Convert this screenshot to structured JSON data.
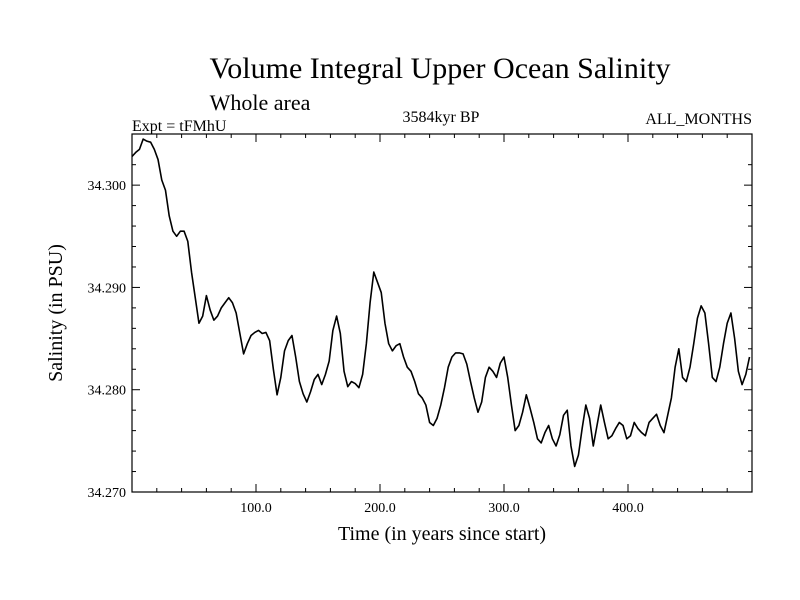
{
  "chart_data": {
    "type": "line",
    "title": "Volume Integral Upper Ocean Salinity",
    "subtitle": "Whole area",
    "experiment_label": "Expt = tFMhU",
    "period_label": "3584kyr BP",
    "months_label": "ALL_MONTHS",
    "xlabel": "Time (in years since start)",
    "ylabel": "Salinity (in PSU)",
    "xlim": [
      0,
      500
    ],
    "ylim": [
      34.27,
      34.305
    ],
    "x_ticks": [
      100,
      200,
      300,
      400
    ],
    "x_tick_labels": [
      "100.0",
      "200.0",
      "300.0",
      "400.0"
    ],
    "y_ticks": [
      34.27,
      34.28,
      34.29,
      34.3
    ],
    "y_tick_labels": [
      "34.270",
      "34.280",
      "34.290",
      "34.300"
    ],
    "series": [
      {
        "name": "Salinity",
        "color": "#000000",
        "x": [
          0,
          3,
          6,
          9,
          12,
          15,
          18,
          21,
          24,
          27,
          30,
          33,
          36,
          39,
          42,
          45,
          48,
          51,
          54,
          57,
          60,
          63,
          66,
          69,
          72,
          75,
          78,
          81,
          84,
          87,
          90,
          93,
          96,
          99,
          102,
          105,
          108,
          111,
          114,
          117,
          120,
          123,
          126,
          129,
          132,
          135,
          138,
          141,
          144,
          147,
          150,
          153,
          156,
          159,
          162,
          165,
          168,
          171,
          174,
          177,
          180,
          183,
          186,
          189,
          192,
          195,
          198,
          201,
          204,
          207,
          210,
          213,
          216,
          219,
          222,
          225,
          228,
          231,
          234,
          237,
          240,
          243,
          246,
          249,
          252,
          255,
          258,
          261,
          264,
          267,
          270,
          273,
          276,
          279,
          282,
          285,
          288,
          291,
          294,
          297,
          300,
          303,
          306,
          309,
          312,
          315,
          318,
          321,
          324,
          327,
          330,
          333,
          336,
          339,
          342,
          345,
          348,
          351,
          354,
          357,
          360,
          363,
          366,
          369,
          372,
          375,
          378,
          381,
          384,
          387,
          390,
          393,
          396,
          399,
          402,
          405,
          408,
          411,
          414,
          417,
          420,
          423,
          426,
          429,
          432,
          435,
          438,
          441,
          444,
          447,
          450,
          453,
          456,
          459,
          462,
          465,
          468,
          471,
          474,
          477,
          480,
          483,
          486,
          489,
          492,
          495,
          498
        ],
        "values": [
          34.3028,
          34.3032,
          34.3035,
          34.3045,
          34.3043,
          34.3042,
          34.3035,
          34.3025,
          34.3005,
          34.2995,
          34.297,
          34.2955,
          34.295,
          34.2955,
          34.2955,
          34.2945,
          34.2915,
          34.289,
          34.2865,
          34.2872,
          34.2892,
          34.2878,
          34.2868,
          34.2872,
          34.288,
          34.2885,
          34.289,
          34.2885,
          34.2875,
          34.2855,
          34.2835,
          34.2845,
          34.2853,
          34.2856,
          34.2858,
          34.2855,
          34.2856,
          34.2848,
          34.282,
          34.2795,
          34.2812,
          34.2838,
          34.2848,
          34.2853,
          34.2832,
          34.2808,
          34.2796,
          34.2788,
          34.2798,
          34.281,
          34.2815,
          34.2805,
          34.2815,
          34.2828,
          34.2858,
          34.2872,
          34.2855,
          34.2818,
          34.2803,
          34.2808,
          34.2806,
          34.2802,
          34.2815,
          34.2845,
          34.2885,
          34.2915,
          34.2905,
          34.2895,
          34.2865,
          34.2845,
          34.2838,
          34.2843,
          34.2845,
          34.2832,
          34.2822,
          34.2818,
          34.2808,
          34.2796,
          34.2792,
          34.2785,
          34.2768,
          34.2765,
          34.2772,
          34.2785,
          34.2802,
          34.2822,
          34.2832,
          34.2836,
          34.2836,
          34.2835,
          34.2825,
          34.2808,
          34.2792,
          34.2778,
          34.2788,
          34.2812,
          34.2822,
          34.2818,
          34.2812,
          34.2826,
          34.2832,
          34.2812,
          34.2785,
          34.276,
          34.2765,
          34.2778,
          34.2795,
          34.2782,
          34.2768,
          34.2752,
          34.2748,
          34.2758,
          34.2765,
          34.2752,
          34.2745,
          34.2756,
          34.2775,
          34.278,
          34.2745,
          34.2725,
          34.2736,
          34.2762,
          34.2785,
          34.2772,
          34.2745,
          34.2765,
          34.2785,
          34.2768,
          34.2752,
          34.2755,
          34.2762,
          34.2768,
          34.2765,
          34.2752,
          34.2755,
          34.2768,
          34.2762,
          34.2758,
          34.2755,
          34.2768,
          34.2772,
          34.2776,
          34.2765,
          34.2758,
          34.2775,
          34.2792,
          34.2822,
          34.284,
          34.2812,
          34.2808,
          34.2822,
          34.2845,
          34.287,
          34.2882,
          34.2875,
          34.2845,
          34.2812,
          34.2808,
          34.2822,
          34.2845,
          34.2865,
          34.2875,
          34.285,
          34.2818,
          34.2805,
          34.2815,
          34.2832
        ]
      }
    ]
  }
}
